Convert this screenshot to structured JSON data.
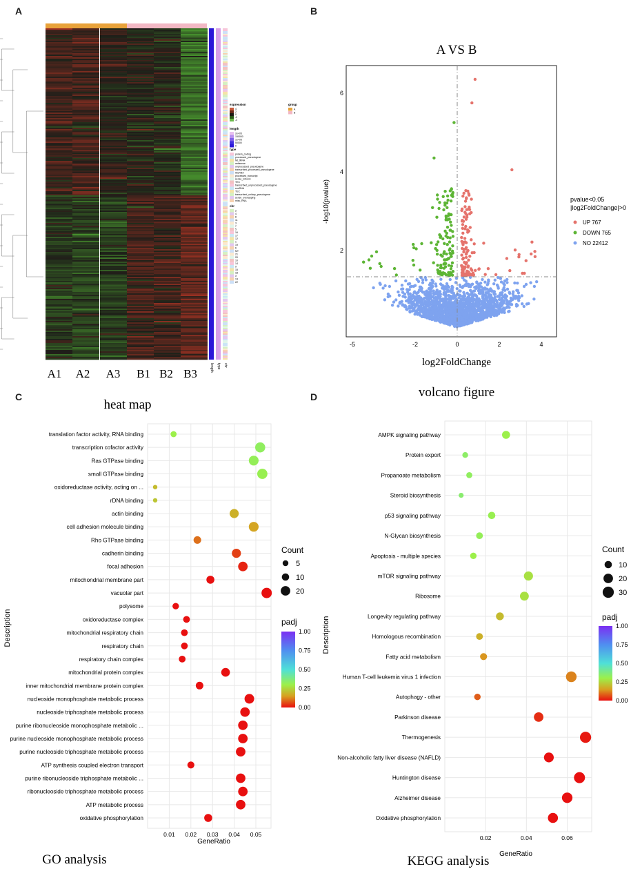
{
  "panel_labels": {
    "A": "A",
    "B": "B",
    "C": "C",
    "D": "D"
  },
  "heatmap": {
    "caption": "heat map",
    "samples": [
      "A1",
      "A2",
      "A3",
      "B1",
      "B2",
      "B3"
    ],
    "annotation_cols": [
      "length",
      "type",
      "chr"
    ],
    "legend": {
      "expression": {
        "title": "expression",
        "ticks": [
          "4",
          "2",
          "0",
          "-2",
          "-4"
        ]
      },
      "group": {
        "title": "group",
        "items": [
          {
            "label": "A",
            "color": "#e8a23a"
          },
          {
            "label": "B",
            "color": "#f2b8c4"
          }
        ]
      },
      "length": {
        "title": "length",
        "ticks": [
          "2e+05",
          "150000",
          "1e+05",
          "50000",
          "0"
        ]
      },
      "type": {
        "title": "type",
        "items": [
          "protein_coding",
          "processed_pseudogene",
          "Mt_tRNA",
          "antisense",
          "unprocessed_pseudogene",
          "transcribed_processed_pseudogene",
          "lincRNA",
          "processed_transcript",
          "sense_intronic",
          "TEC",
          "transcribed_unprocessed_pseudogene",
          "snoRNA",
          "TEC",
          "transcribed_unitary_pseudogene",
          "sense_overlapping",
          "misc_RNA"
        ]
      },
      "chr": {
        "title": "chr",
        "items": [
          "2",
          "4",
          "8",
          "11",
          "3",
          "7",
          "5",
          "16",
          "17",
          "12",
          "1",
          "19",
          "6",
          "MT",
          "21",
          "20",
          "10",
          "14",
          "9",
          "15",
          "18",
          "X",
          "13",
          "22"
        ]
      }
    }
  },
  "volcano": {
    "title": "A VS B",
    "caption": "volcano figure",
    "xlabel": "log2FoldChange",
    "ylabel": "-log10(pvalue)",
    "xticks": [
      "-5",
      "-2",
      "0",
      "2",
      "4"
    ],
    "yticks": [
      "2",
      "4",
      "6"
    ],
    "legend_title": [
      "pvalue<0.05",
      "|log2FoldChange|>0"
    ],
    "legend": [
      {
        "label": "UP 767",
        "color": "#e5736c"
      },
      {
        "label": "DOWN 765",
        "color": "#5db535"
      },
      {
        "label": "NO 22412",
        "color": "#7ea3ef"
      }
    ]
  },
  "chart_data": [
    {
      "type": "scatter",
      "title": "GO analysis",
      "xlabel": "GeneRatio",
      "ylabel": "Description",
      "xlim": [
        0.0,
        0.057
      ],
      "xticks": [
        "0.01",
        "0.02",
        "0.03",
        "0.04",
        "0.05"
      ],
      "size_legend": {
        "title": "Count",
        "values": [
          5,
          10,
          20
        ]
      },
      "color_legend": {
        "title": "padj",
        "ticks": [
          "1.00",
          "0.75",
          "0.50",
          "0.25",
          "0.00"
        ]
      },
      "points": [
        {
          "term": "translation factor activity, RNA binding",
          "x": 0.012,
          "count": 6,
          "padj": 0.3
        },
        {
          "term": "transcription cofactor activity",
          "x": 0.052,
          "count": 23,
          "padj": 0.33
        },
        {
          "term": "Ras GTPase binding",
          "x": 0.049,
          "count": 22,
          "padj": 0.32
        },
        {
          "term": "small GTPase binding",
          "x": 0.053,
          "count": 24,
          "padj": 0.31
        },
        {
          "term": "oxidoreductase activity, acting on ...",
          "x": 0.0035,
          "count": 2,
          "padj": 0.2
        },
        {
          "term": "rDNA binding",
          "x": 0.0035,
          "count": 2,
          "padj": 0.22
        },
        {
          "term": "actin binding",
          "x": 0.04,
          "count": 18,
          "padj": 0.18
        },
        {
          "term": "cell adhesion molecule binding",
          "x": 0.049,
          "count": 22,
          "padj": 0.16
        },
        {
          "term": "Rho GTPase binding",
          "x": 0.023,
          "count": 11,
          "padj": 0.1
        },
        {
          "term": "cadherin binding",
          "x": 0.041,
          "count": 18,
          "padj": 0.05
        },
        {
          "term": "focal adhesion",
          "x": 0.044,
          "count": 20,
          "padj": 0.02
        },
        {
          "term": "mitochondrial membrane part",
          "x": 0.029,
          "count": 13,
          "padj": 0.0
        },
        {
          "term": "vacuolar part",
          "x": 0.055,
          "count": 25,
          "padj": 0.0
        },
        {
          "term": "polysome",
          "x": 0.013,
          "count": 7,
          "padj": 0.0
        },
        {
          "term": "oxidoreductase complex",
          "x": 0.018,
          "count": 8,
          "padj": 0.0
        },
        {
          "term": "mitochondrial respiratory chain",
          "x": 0.017,
          "count": 8,
          "padj": 0.0
        },
        {
          "term": "respiratory chain",
          "x": 0.017,
          "count": 8,
          "padj": 0.0
        },
        {
          "term": "respiratory chain complex",
          "x": 0.016,
          "count": 8,
          "padj": 0.0
        },
        {
          "term": "mitochondrial protein complex",
          "x": 0.036,
          "count": 16,
          "padj": 0.0
        },
        {
          "term": "inner mitochondrial membrane protein complex",
          "x": 0.024,
          "count": 11,
          "padj": 0.0
        },
        {
          "term": "nucleoside monophosphate metabolic process",
          "x": 0.047,
          "count": 21,
          "padj": 0.0
        },
        {
          "term": "nucleoside triphosphate metabolic process",
          "x": 0.045,
          "count": 20,
          "padj": 0.0
        },
        {
          "term": "purine ribonucleoside monophosphate metabolic ...",
          "x": 0.044,
          "count": 20,
          "padj": 0.0
        },
        {
          "term": "purine nucleoside monophosphate metabolic process",
          "x": 0.044,
          "count": 20,
          "padj": 0.0
        },
        {
          "term": "purine nucleoside triphosphate metabolic process",
          "x": 0.043,
          "count": 20,
          "padj": 0.0
        },
        {
          "term": "ATP synthesis coupled electron transport",
          "x": 0.02,
          "count": 9,
          "padj": 0.0
        },
        {
          "term": "purine ribonucleoside triphosphate metabolic ...",
          "x": 0.043,
          "count": 20,
          "padj": 0.0
        },
        {
          "term": "ribonucleoside triphosphate metabolic process",
          "x": 0.044,
          "count": 20,
          "padj": 0.0
        },
        {
          "term": "ATP metabolic process",
          "x": 0.043,
          "count": 20,
          "padj": 0.0
        },
        {
          "term": "oxidative phosphorylation",
          "x": 0.028,
          "count": 13,
          "padj": 0.0
        }
      ]
    },
    {
      "type": "scatter",
      "title": "KEGG analysis",
      "xlabel": "GeneRatio",
      "ylabel": "Description",
      "xlim": [
        0.0,
        0.072
      ],
      "xticks": [
        "0.02",
        "0.04",
        "0.06"
      ],
      "size_legend": {
        "title": "Count",
        "values": [
          10,
          20,
          30
        ]
      },
      "color_legend": {
        "title": "padj",
        "ticks": [
          "1.00",
          "0.75",
          "0.50",
          "0.25",
          "0.00"
        ]
      },
      "points": [
        {
          "term": "AMPK signaling pathway",
          "x": 0.03,
          "count": 13,
          "padj": 0.3
        },
        {
          "term": "Protein export",
          "x": 0.01,
          "count": 5,
          "padj": 0.34
        },
        {
          "term": "Propanoate metabolism",
          "x": 0.012,
          "count": 6,
          "padj": 0.33
        },
        {
          "term": "Steroid biosynthesis",
          "x": 0.008,
          "count": 3,
          "padj": 0.35
        },
        {
          "term": "p53 signaling pathway",
          "x": 0.023,
          "count": 10,
          "padj": 0.31
        },
        {
          "term": "N-Glycan biosynthesis",
          "x": 0.017,
          "count": 8,
          "padj": 0.32
        },
        {
          "term": "Apoptosis - multiple species",
          "x": 0.014,
          "count": 7,
          "padj": 0.3
        },
        {
          "term": "mTOR signaling pathway",
          "x": 0.041,
          "count": 18,
          "padj": 0.27
        },
        {
          "term": "Ribosome",
          "x": 0.039,
          "count": 17,
          "padj": 0.27
        },
        {
          "term": "Longevity regulating pathway",
          "x": 0.027,
          "count": 12,
          "padj": 0.2
        },
        {
          "term": "Homologous recombination",
          "x": 0.017,
          "count": 8,
          "padj": 0.18
        },
        {
          "term": "Fatty acid metabolism",
          "x": 0.019,
          "count": 9,
          "padj": 0.14
        },
        {
          "term": "Human T-cell leukemia virus 1 infection",
          "x": 0.062,
          "count": 27,
          "padj": 0.12
        },
        {
          "term": "Autophagy - other",
          "x": 0.016,
          "count": 7,
          "padj": 0.08
        },
        {
          "term": "Parkinson disease",
          "x": 0.046,
          "count": 20,
          "padj": 0.03
        },
        {
          "term": "Thermogenesis",
          "x": 0.069,
          "count": 30,
          "padj": 0.01
        },
        {
          "term": "Non-alcoholic fatty liver disease (NAFLD)",
          "x": 0.051,
          "count": 22,
          "padj": 0.0
        },
        {
          "term": "Huntington disease",
          "x": 0.066,
          "count": 29,
          "padj": 0.0
        },
        {
          "term": "Alzheimer disease",
          "x": 0.06,
          "count": 26,
          "padj": 0.0
        },
        {
          "term": "Oxidative phosphorylation",
          "x": 0.053,
          "count": 23,
          "padj": 0.0
        }
      ]
    }
  ]
}
